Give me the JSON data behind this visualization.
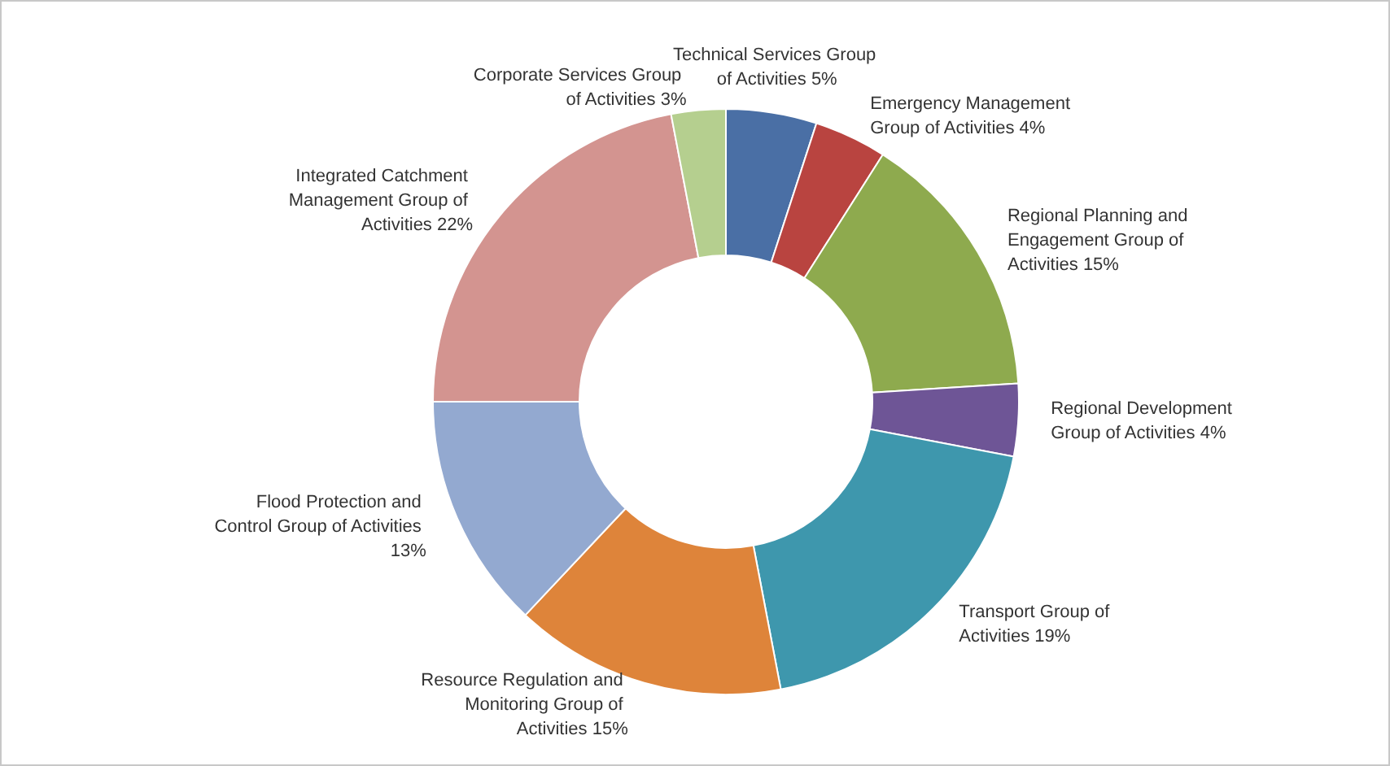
{
  "chart_data": {
    "type": "donut",
    "categories": [
      "Technical Services Group of Activities",
      "Emergency Management Group of Activities",
      "Regional Planning and Engagement Group of Activities",
      "Regional Development Group of Activities",
      "Transport Group of Activities",
      "Resource Regulation and Monitoring Group of Activities",
      "Flood Protection and Control Group of Activities",
      "Integrated Catchment Management Group of Activities",
      "Corporate Services Group of Activities"
    ],
    "values": [
      5,
      4,
      15,
      4,
      19,
      15,
      13,
      22,
      3
    ],
    "value_labels": [
      "5%",
      "4%",
      "15%",
      "4%",
      "19%",
      "15%",
      "13%",
      "22%",
      "3%"
    ],
    "colors": [
      "#4a6fa5",
      "#b94440",
      "#8eaa4e",
      "#6e5596",
      "#3e97ad",
      "#de843a",
      "#93a9d0",
      "#d39490",
      "#b5cf8f"
    ],
    "legend": false
  }
}
